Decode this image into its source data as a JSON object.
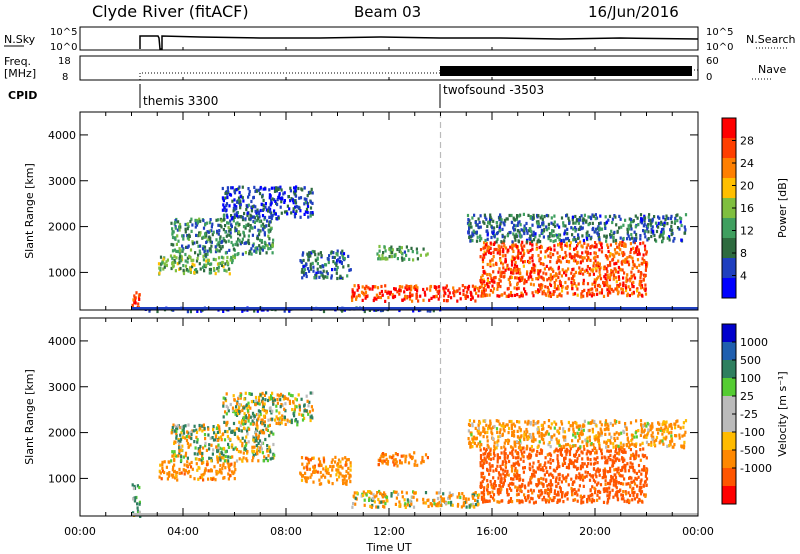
{
  "header": {
    "title": "Clyde River (fitACF)",
    "beam": "Beam 03",
    "date": "16/Jun/2016"
  },
  "panels": {
    "nsky_label": "N.Sky",
    "nsearch_label": "N.Search",
    "freq_label_1": "Freq.",
    "freq_label_2": "[MHz]",
    "nave_label": "Nave",
    "cpid_label": "CPID",
    "nsky_ticks": [
      "10^5",
      "10^0"
    ],
    "nsearch_ticks": [
      "10^5",
      "10^0"
    ],
    "freq_ticks": [
      "18",
      "8"
    ],
    "nave_ticks": [
      "60",
      "0"
    ]
  },
  "cpid": [
    {
      "start_hour": 2.0,
      "name": "themis 3300"
    },
    {
      "start_hour": 14.0,
      "name": "twofsound -3503"
    }
  ],
  "colors": {
    "power_scale": [
      "#0000ff",
      "#1f3fbf",
      "#2e6b3f",
      "#3f9f5f",
      "#7fbf3f",
      "#ffbf00",
      "#ff7f00",
      "#ff3f00",
      "#ff0000"
    ],
    "velocity_scale": [
      "#ff0000",
      "#ff5500",
      "#ff8800",
      "#ffbb00",
      "#bbbbbb",
      "#bbbbbb",
      "#55cc33",
      "#2e7f5f",
      "#1f5faf",
      "#0000cc"
    ]
  },
  "chart_data": [
    {
      "type": "heatmap",
      "title": "Power",
      "xlabel": "Time UT",
      "ylabel": "Slant Range [km]",
      "xlim": [
        0,
        24
      ],
      "ylim": [
        180,
        4500
      ],
      "yticks": [
        1000,
        2000,
        3000,
        4000
      ],
      "colorbar": {
        "label": "Power [dB]",
        "range": [
          0,
          32
        ],
        "ticks": [
          4,
          8,
          12,
          16,
          20,
          24,
          28
        ]
      },
      "scatter_regions": [
        {
          "t": [
            2.0,
            2.3
          ],
          "range": [
            200,
            600
          ],
          "value": 28
        },
        {
          "t": [
            2.3,
            14.0
          ],
          "range": [
            180,
            260
          ],
          "value": 6
        },
        {
          "t": [
            3.0,
            6.0
          ],
          "range": [
            1000,
            1400
          ],
          "value": 14
        },
        {
          "t": [
            3.5,
            7.5
          ],
          "range": [
            1400,
            2200
          ],
          "value": 10
        },
        {
          "t": [
            5.5,
            9.0
          ],
          "range": [
            2200,
            2900
          ],
          "value": 6
        },
        {
          "t": [
            8.5,
            10.5
          ],
          "range": [
            900,
            1500
          ],
          "value": 8
        },
        {
          "t": [
            10.5,
            15.5
          ],
          "range": [
            400,
            750
          ],
          "value": 28
        },
        {
          "t": [
            11.5,
            13.5
          ],
          "range": [
            1300,
            1600
          ],
          "value": 12
        },
        {
          "t": [
            15.5,
            22.0
          ],
          "range": [
            500,
            1700
          ],
          "value": 26
        },
        {
          "t": [
            15.0,
            23.5
          ],
          "range": [
            1700,
            2300
          ],
          "value": 8
        }
      ]
    },
    {
      "type": "heatmap",
      "title": "Velocity",
      "xlabel": "Time UT",
      "ylabel": "Slant Range [km]",
      "xlim": [
        0,
        24
      ],
      "ylim": [
        180,
        4500
      ],
      "yticks": [
        1000,
        2000,
        3000,
        4000
      ],
      "xticks": [
        "00:00",
        "04:00",
        "08:00",
        "12:00",
        "16:00",
        "20:00",
        "00:00"
      ],
      "colorbar": {
        "label": "Velocity [m s⁻¹]",
        "range": [
          -1200,
          1200
        ],
        "ticks": [
          "1000",
          "500",
          "100",
          "25",
          "-25",
          "-100",
          "-500",
          "-1000"
        ]
      },
      "scatter_regions": [
        {
          "t": [
            2.0,
            2.3
          ],
          "range": [
            200,
            900
          ],
          "value": 100
        },
        {
          "t": [
            3.0,
            6.0
          ],
          "range": [
            1000,
            1400
          ],
          "value": -300
        },
        {
          "t": [
            3.5,
            7.5
          ],
          "range": [
            1400,
            2200
          ],
          "value": 0
        },
        {
          "t": [
            5.5,
            9.0
          ],
          "range": [
            2200,
            2900
          ],
          "value": 0
        },
        {
          "t": [
            8.5,
            10.5
          ],
          "range": [
            900,
            1500
          ],
          "value": -300
        },
        {
          "t": [
            10.5,
            15.5
          ],
          "range": [
            400,
            750
          ],
          "value": -60
        },
        {
          "t": [
            11.5,
            13.5
          ],
          "range": [
            1300,
            1600
          ],
          "value": -400
        },
        {
          "t": [
            15.5,
            22.0
          ],
          "range": [
            500,
            1700
          ],
          "value": -700
        },
        {
          "t": [
            15.0,
            23.5
          ],
          "range": [
            1700,
            2300
          ],
          "value": -200
        }
      ]
    }
  ]
}
